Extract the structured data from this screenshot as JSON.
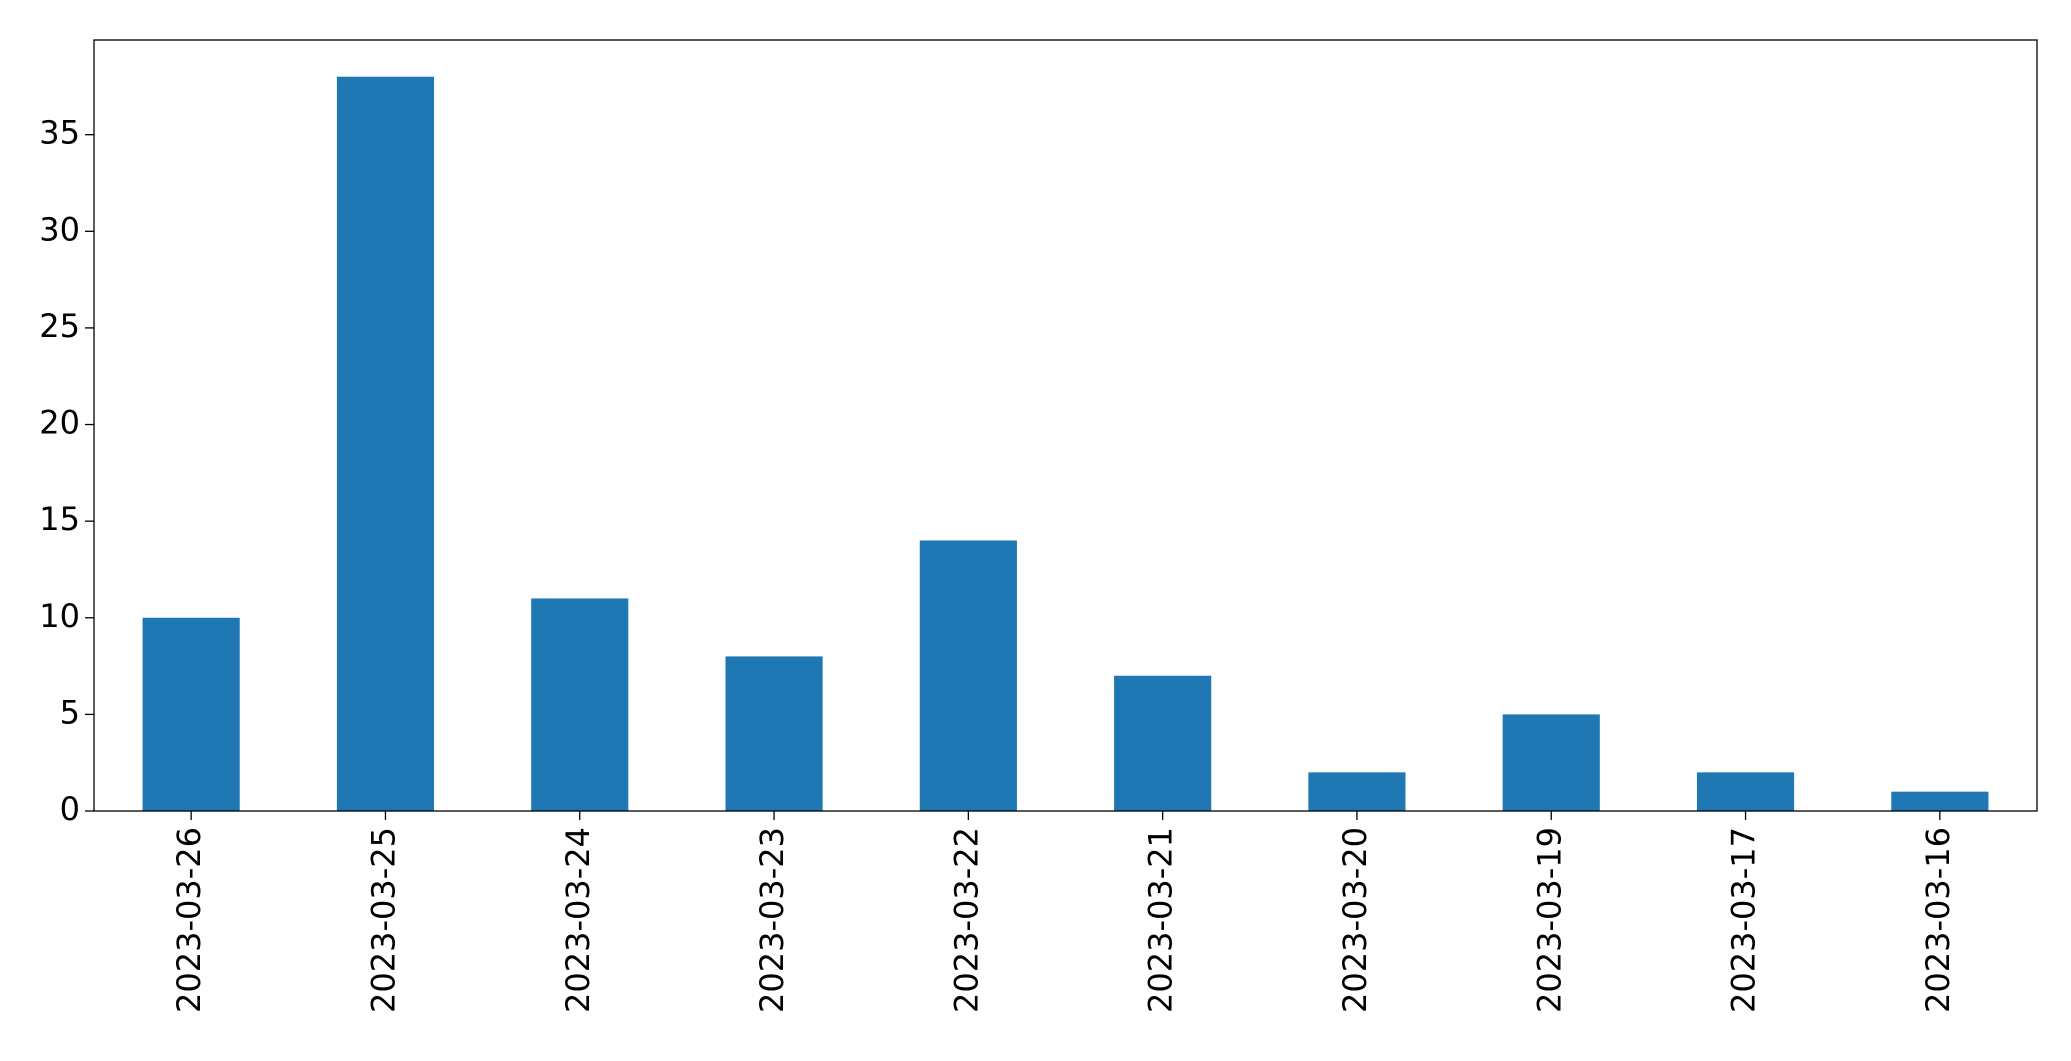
{
  "chart_data": {
    "type": "bar",
    "categories": [
      "2023-03-26",
      "2023-03-25",
      "2023-03-24",
      "2023-03-23",
      "2023-03-22",
      "2023-03-21",
      "2023-03-20",
      "2023-03-19",
      "2023-03-17",
      "2023-03-16"
    ],
    "values": [
      10,
      38,
      11,
      8,
      14,
      7,
      2,
      5,
      2,
      1
    ],
    "color": "#1f77b4",
    "ylim": [
      0,
      39.9
    ],
    "yticks": [
      0,
      5,
      10,
      15,
      20,
      25,
      30,
      35
    ],
    "grid": false
  }
}
